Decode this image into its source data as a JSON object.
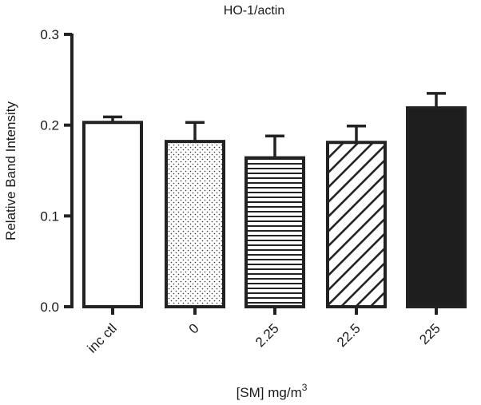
{
  "chart_data": {
    "type": "bar",
    "title": "HO-1/actin",
    "xlabel": "[SM] mg/m",
    "xlabel_superscript": "3",
    "ylabel": "Relative Band Intensity",
    "ylim": [
      0,
      0.3
    ],
    "yticks": [
      "0.0",
      "0.1",
      "0.2",
      "0.3"
    ],
    "ytick_values": [
      0,
      0.1,
      0.2,
      0.3
    ],
    "categories": [
      "inc ctl",
      "0",
      "2.25",
      "22.5",
      "225"
    ],
    "values": [
      0.203,
      0.182,
      0.164,
      0.181,
      0.219
    ],
    "error_upper": [
      0.209,
      0.203,
      0.188,
      0.199,
      0.235
    ],
    "fills": [
      "open",
      "dotted",
      "horizontal-lines",
      "diagonal-lines",
      "solid"
    ],
    "grid": false,
    "legend": "none"
  }
}
